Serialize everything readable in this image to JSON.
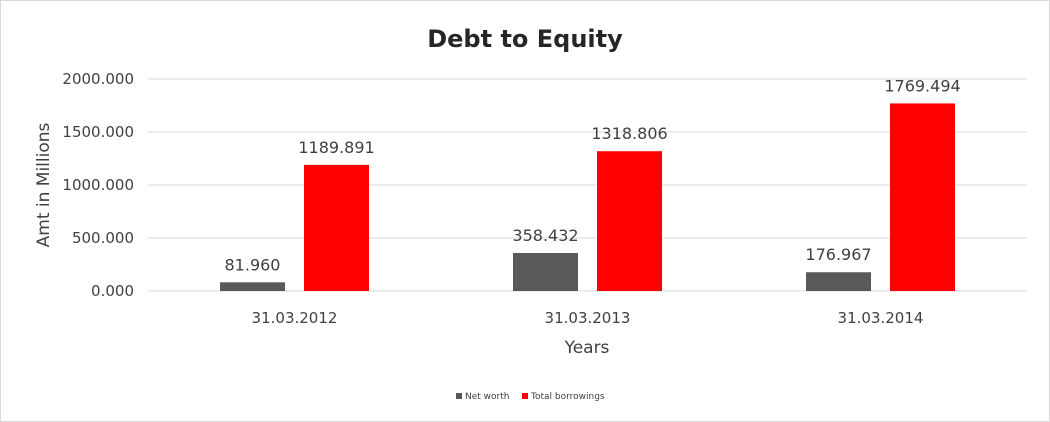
{
  "chart_data": {
    "type": "bar",
    "title": "Debt to Equity",
    "xlabel": "Years",
    "ylabel": "Amt in Millions",
    "categories": [
      "31.03.2012",
      "31.03.2013",
      "31.03.2014"
    ],
    "ylim": [
      0,
      2000
    ],
    "yticks": [
      0,
      500,
      1000,
      1500,
      2000
    ],
    "ytick_labels": [
      "0.000",
      "500.000",
      "1000.000",
      "1500.000",
      "2000.000"
    ],
    "grid": true,
    "legend_position": "bottom",
    "series": [
      {
        "name": "Net worth",
        "color": "#595959",
        "values": [
          81.96,
          358.432,
          176.967
        ],
        "labels": [
          "81.960",
          "358.432",
          "176.967"
        ]
      },
      {
        "name": "Total borrowings",
        "color": "#ff0000",
        "values": [
          1189.891,
          1318.806,
          1769.494
        ],
        "labels": [
          "1189.891",
          "1318.806",
          "1769.494"
        ]
      }
    ]
  }
}
